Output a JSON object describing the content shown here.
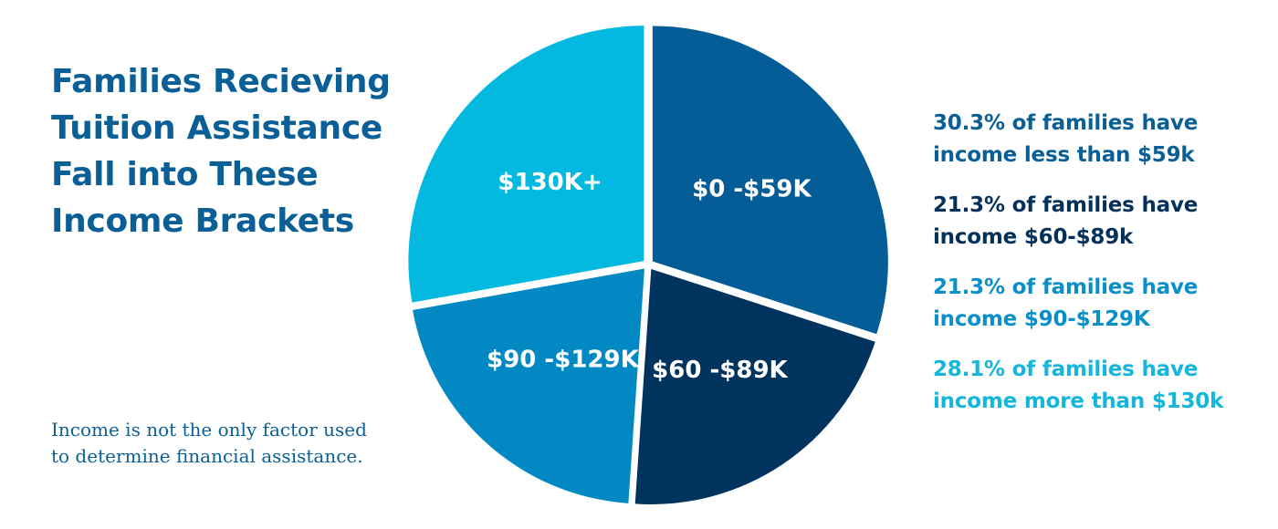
{
  "title_lines": [
    "Families Recieving",
    "Tuition Assistance",
    "Fall into These",
    "Income Brackets"
  ],
  "note_lines": [
    "Income is not the only factor used",
    "to determine financial assistance."
  ],
  "colors": {
    "title": "#0a5f97",
    "slice_0_59": "#045d96",
    "slice_60_89": "#00335e",
    "slice_90_129": "#0289c4",
    "slice_130": "#03b9e0"
  },
  "legend": [
    {
      "line1": "30.3% of families have",
      "line2": "income less than $59k",
      "color": "#0a5f97"
    },
    {
      "line1": "21.3% of families have",
      "line2": "income $60-$89k",
      "color": "#04315a"
    },
    {
      "line1": "21.3% of families have",
      "line2": "income $90-$129K",
      "color": "#0a8fc9"
    },
    {
      "line1": "28.1% of families have",
      "line2": "income more than $130k",
      "color": "#14b6dc"
    }
  ],
  "chart_data": {
    "type": "pie",
    "title": "Families Recieving Tuition Assistance Fall into These Income Brackets",
    "categories": [
      "$0 -$59K",
      "$60 -$89K",
      "$90 -$129K",
      "$130K+"
    ],
    "values": [
      30.3,
      21.3,
      21.3,
      28.1
    ],
    "colors": [
      "#045d96",
      "#00335e",
      "#0289c4",
      "#03b9e0"
    ],
    "start_angle_deg": 0,
    "direction": "clockwise"
  }
}
